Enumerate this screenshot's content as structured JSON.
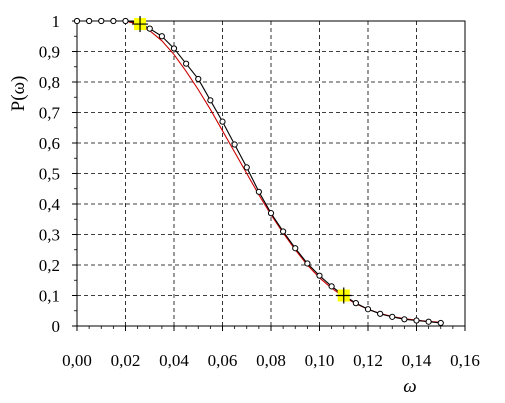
{
  "chart_data": {
    "type": "line",
    "title": "",
    "xlabel": "ω",
    "ylabel": "P(ω)",
    "xlim": [
      0,
      0.16
    ],
    "ylim": [
      0,
      1
    ],
    "grid": true,
    "grid_style": "dashed",
    "x_ticks": [
      "0,00",
      "0,02",
      "0,04",
      "0,06",
      "0,08",
      "0,10",
      "0,12",
      "0,14",
      "0,16"
    ],
    "y_ticks": [
      "0",
      "0,1",
      "0,2",
      "0,3",
      "0,4",
      "0,5",
      "0,6",
      "0,7",
      "0,8",
      "0,9",
      "1"
    ],
    "series": [
      {
        "style": "line",
        "color": "#000000",
        "marker": "circle",
        "x": [
          0.0,
          0.005,
          0.01,
          0.015,
          0.02,
          0.025,
          0.03,
          0.035,
          0.04,
          0.045,
          0.05,
          0.055,
          0.06,
          0.065,
          0.07,
          0.075,
          0.08,
          0.085,
          0.09,
          0.095,
          0.1,
          0.105,
          0.11,
          0.115,
          0.12,
          0.125,
          0.13,
          0.135,
          0.14,
          0.145,
          0.15
        ],
        "y": [
          1.0,
          1.0,
          1.0,
          1.0,
          1.0,
          0.995,
          0.975,
          0.95,
          0.91,
          0.86,
          0.81,
          0.74,
          0.67,
          0.595,
          0.52,
          0.44,
          0.37,
          0.31,
          0.255,
          0.205,
          0.165,
          0.13,
          0.1,
          0.075,
          0.055,
          0.04,
          0.03,
          0.022,
          0.018,
          0.014,
          0.01
        ]
      },
      {
        "style": "line",
        "color": "#cc0000",
        "marker": "none",
        "x": [
          0.0,
          0.005,
          0.01,
          0.015,
          0.02,
          0.025,
          0.03,
          0.035,
          0.04,
          0.045,
          0.05,
          0.055,
          0.06,
          0.065,
          0.07,
          0.075,
          0.08,
          0.085,
          0.09,
          0.095,
          0.1,
          0.105,
          0.11,
          0.115,
          0.12,
          0.125,
          0.13,
          0.135,
          0.14,
          0.145,
          0.15
        ],
        "y": [
          1.0,
          1.0,
          1.0,
          1.0,
          1.0,
          0.99,
          0.968,
          0.935,
          0.89,
          0.835,
          0.775,
          0.71,
          0.64,
          0.57,
          0.5,
          0.43,
          0.365,
          0.305,
          0.25,
          0.2,
          0.158,
          0.124,
          0.096,
          0.073,
          0.055,
          0.041,
          0.031,
          0.024,
          0.019,
          0.015,
          0.012
        ]
      }
    ],
    "highlights": [
      {
        "x": 0.026,
        "y": 0.99,
        "color": "#ffff00",
        "marker": "plus"
      },
      {
        "x": 0.11,
        "y": 0.1,
        "color": "#ffff00",
        "marker": "plus"
      }
    ]
  }
}
